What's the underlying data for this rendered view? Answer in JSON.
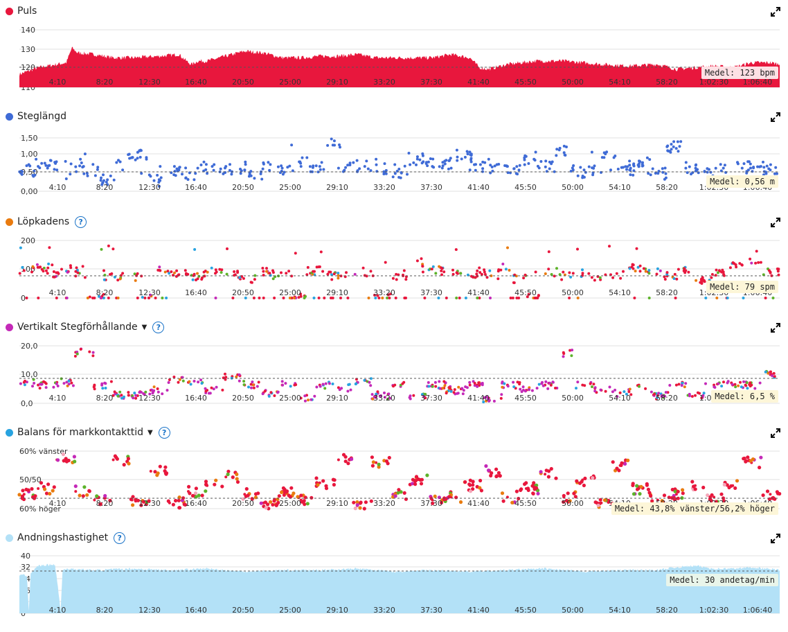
{
  "x_ticks": [
    "4:10",
    "8:20",
    "12:30",
    "16:40",
    "20:50",
    "25:00",
    "29:10",
    "33:20",
    "37:30",
    "41:40",
    "45:50",
    "50:00",
    "54:10",
    "58:20",
    "1:02:30",
    "1:06:40"
  ],
  "colors": {
    "red": "#e8173d",
    "blue": "#3f6bd6",
    "orange": "#e97b0f",
    "magenta": "#c429b8",
    "cyan": "#28a3e0",
    "green": "#5db32a",
    "lightblue": "#b3e1f7",
    "pink": "#f4a7b9"
  },
  "panels": [
    {
      "id": "puls",
      "title": "Puls",
      "dot_color": "#e8173d",
      "has_help": false,
      "has_caret": false,
      "y_labels": [
        "140",
        "130",
        "120",
        "110"
      ],
      "avg_label": "Medel: 123 bpm"
    },
    {
      "id": "steglangd",
      "title": "Steglängd",
      "dot_color": "#3f6bd6",
      "has_help": false,
      "has_caret": false,
      "y_labels": [
        "1,50",
        "1,00",
        "0,50",
        "0,00"
      ],
      "avg_label": "Medel: 0,56 m"
    },
    {
      "id": "lopkadens",
      "title": "Löpkadens",
      "dot_color": "#e97b0f",
      "has_help": true,
      "has_caret": false,
      "y_labels": [
        "200",
        "100",
        "0"
      ],
      "avg_label": "Medel: 79 spm"
    },
    {
      "id": "vertikalt",
      "title": "Vertikalt Stegförhållande",
      "dot_color": "#c429b8",
      "has_help": true,
      "has_caret": true,
      "y_labels": [
        "20,0",
        "10,0",
        "0,0"
      ],
      "avg_label": "Medel: 6,5 %"
    },
    {
      "id": "balans",
      "title": "Balans för markkontakttid",
      "dot_color": "#28a3e0",
      "has_help": true,
      "has_caret": true,
      "y_labels": [
        "60% vänster",
        "50/50",
        "60% höger"
      ],
      "avg_label": "Medel: 43,8% vänster/56,2% höger"
    },
    {
      "id": "andning",
      "title": "Andningshastighet",
      "dot_color": "#b3e1f7",
      "has_help": true,
      "has_caret": false,
      "y_labels": [
        "40",
        "32",
        "24",
        "16",
        "8",
        "0"
      ],
      "avg_label": "Medel: 30 andetag/min"
    }
  ],
  "chart_data": [
    {
      "type": "area",
      "title": "Puls",
      "x_unit": "time",
      "ylim": [
        110,
        145
      ],
      "mean": 123,
      "color": "#e8173d",
      "x": [
        0,
        200,
        400,
        500,
        560,
        620,
        800,
        1000,
        1200,
        1500,
        1700,
        1760,
        1800,
        1840,
        1900,
        2000,
        2200,
        2400,
        2600,
        2800,
        3000,
        3200,
        3400,
        3600,
        3800,
        4000,
        4200,
        4400,
        4600,
        4800,
        4900,
        5000,
        5200,
        5500,
        5800,
        6000,
        6200,
        6500,
        6800,
        7000,
        7200,
        7400,
        7600,
        7800,
        8000,
        8100
      ],
      "values": [
        118,
        122,
        124,
        125,
        134,
        131,
        130,
        128,
        128,
        129,
        130,
        127,
        125,
        124,
        126,
        126,
        129,
        132,
        131,
        128,
        128,
        129,
        129,
        130,
        128,
        128,
        128,
        128,
        130,
        128,
        122,
        121,
        124,
        126,
        126,
        125,
        124,
        123,
        124,
        121,
        122,
        123,
        122,
        125,
        125,
        124
      ]
    },
    {
      "type": "scatter",
      "title": "Steglängd",
      "ylim": [
        0,
        1.5
      ],
      "mean": 0.56,
      "color": "#3f6bd6",
      "points": [
        [
          30,
          0.55
        ],
        [
          100,
          0.75
        ],
        [
          200,
          0.7
        ],
        [
          300,
          0.65
        ],
        [
          400,
          0.6
        ],
        [
          500,
          0.35
        ],
        [
          650,
          0.9
        ],
        [
          700,
          1.05
        ],
        [
          900,
          0.3
        ],
        [
          1100,
          0.6
        ],
        [
          1300,
          0.5
        ],
        [
          1500,
          0.7
        ],
        [
          1700,
          0.6
        ],
        [
          1900,
          0.65
        ],
        [
          2000,
          0.5
        ],
        [
          2200,
          0.7
        ],
        [
          2400,
          0.6
        ],
        [
          2600,
          0.8
        ],
        [
          2800,
          0.65
        ],
        [
          2900,
          1.3
        ],
        [
          3000,
          0.7
        ],
        [
          3200,
          0.7
        ],
        [
          3400,
          0.65
        ],
        [
          3600,
          0.55
        ],
        [
          3800,
          0.9
        ],
        [
          4000,
          0.75
        ],
        [
          4200,
          0.8
        ],
        [
          4300,
          1.0
        ],
        [
          4400,
          0.7
        ],
        [
          4600,
          0.65
        ],
        [
          4800,
          0.6
        ],
        [
          5000,
          0.9
        ],
        [
          5200,
          0.7
        ],
        [
          5500,
          1.1
        ],
        [
          5700,
          0.55
        ],
        [
          5900,
          0.6
        ],
        [
          6100,
          1.1
        ],
        [
          6300,
          0.6
        ],
        [
          6500,
          0.85
        ],
        [
          6700,
          0.5
        ],
        [
          6900,
          1.25
        ],
        [
          7100,
          0.65
        ],
        [
          7300,
          0.55
        ],
        [
          7500,
          0.65
        ],
        [
          7700,
          0.65
        ],
        [
          7900,
          0.7
        ],
        [
          8000,
          0.6
        ]
      ]
    },
    {
      "type": "scatter",
      "title": "Löpkadens",
      "ylim": [
        0,
        210
      ],
      "mean": 79,
      "series_colors": [
        "#e8173d",
        "#28a3e0",
        "#5db32a",
        "#e97b0f",
        "#c429b8"
      ],
      "points": [
        [
          50,
          100
        ],
        [
          150,
          110
        ],
        [
          300,
          90
        ],
        [
          450,
          105
        ],
        [
          500,
          0
        ],
        [
          600,
          80
        ],
        [
          700,
          75
        ],
        [
          800,
          0
        ],
        [
          900,
          100
        ],
        [
          1100,
          90
        ],
        [
          1300,
          80
        ],
        [
          1500,
          100
        ],
        [
          1700,
          85
        ],
        [
          1900,
          70
        ],
        [
          2100,
          95
        ],
        [
          2300,
          85
        ],
        [
          2500,
          0
        ],
        [
          2700,
          100
        ],
        [
          2900,
          80
        ],
        [
          3100,
          90
        ],
        [
          3300,
          95
        ],
        [
          3500,
          0
        ],
        [
          3700,
          80
        ],
        [
          3900,
          130
        ],
        [
          4100,
          100
        ],
        [
          4300,
          95
        ],
        [
          4500,
          85
        ],
        [
          4700,
          90
        ],
        [
          4900,
          110
        ],
        [
          5100,
          70
        ],
        [
          5300,
          0
        ],
        [
          5500,
          95
        ],
        [
          5700,
          80
        ],
        [
          5900,
          90
        ],
        [
          6100,
          75
        ],
        [
          6300,
          85
        ],
        [
          6500,
          110
        ],
        [
          6700,
          95
        ],
        [
          6900,
          80
        ],
        [
          7100,
          100
        ],
        [
          7300,
          60
        ],
        [
          7500,
          95
        ],
        [
          7700,
          120
        ],
        [
          7900,
          130
        ],
        [
          8000,
          95
        ]
      ]
    },
    {
      "type": "scatter",
      "title": "Vertikalt Stegförhållande",
      "ylim": [
        0,
        22
      ],
      "mean": 6.5,
      "series_colors": [
        "#e8173d",
        "#28a3e0",
        "#5db32a",
        "#e97b0f",
        "#c429b8"
      ],
      "points": [
        [
          50,
          8
        ],
        [
          200,
          7
        ],
        [
          400,
          8
        ],
        [
          600,
          19.5
        ],
        [
          800,
          7
        ],
        [
          1000,
          3
        ],
        [
          1200,
          3
        ],
        [
          1400,
          5
        ],
        [
          1600,
          9
        ],
        [
          1800,
          8
        ],
        [
          2000,
          5
        ],
        [
          2200,
          10
        ],
        [
          2400,
          7
        ],
        [
          2600,
          4
        ],
        [
          2800,
          7
        ],
        [
          3000,
          2
        ],
        [
          3200,
          7
        ],
        [
          3400,
          6
        ],
        [
          3600,
          8
        ],
        [
          3800,
          3
        ],
        [
          4000,
          7
        ],
        [
          4200,
          3
        ],
        [
          4400,
          7
        ],
        [
          4600,
          5
        ],
        [
          4800,
          7
        ],
        [
          5000,
          2
        ],
        [
          5200,
          7
        ],
        [
          5400,
          5
        ],
        [
          5600,
          7
        ],
        [
          5800,
          19
        ],
        [
          6000,
          7
        ],
        [
          6200,
          5
        ],
        [
          6400,
          4
        ],
        [
          6600,
          7
        ],
        [
          6800,
          3
        ],
        [
          7000,
          7
        ],
        [
          7200,
          3
        ],
        [
          7400,
          7
        ],
        [
          7600,
          7
        ],
        [
          7800,
          7
        ],
        [
          8000,
          11
        ]
      ]
    },
    {
      "type": "scatter",
      "title": "Balans för markkontakttid",
      "ylim": [
        "60% höger",
        "60% vänster"
      ],
      "mean": "43,8% vänster/56,2% höger",
      "series_colors": [
        "#e8173d",
        "#e97b0f",
        "#5db32a",
        "#c429b8",
        "#f4a7b9"
      ],
      "points": [
        [
          50,
          45
        ],
        [
          200,
          47
        ],
        [
          400,
          57
        ],
        [
          600,
          46
        ],
        [
          800,
          43
        ],
        [
          1000,
          57
        ],
        [
          1200,
          43
        ],
        [
          1400,
          53
        ],
        [
          1600,
          42
        ],
        [
          1800,
          46
        ],
        [
          2000,
          48
        ],
        [
          2200,
          51
        ],
        [
          2400,
          45
        ],
        [
          2600,
          42
        ],
        [
          2800,
          46
        ],
        [
          3000,
          43
        ],
        [
          3200,
          49
        ],
        [
          3400,
          57
        ],
        [
          3600,
          41
        ],
        [
          3800,
          56
        ],
        [
          4000,
          45
        ],
        [
          4200,
          50
        ],
        [
          4400,
          43
        ],
        [
          4600,
          44
        ],
        [
          4800,
          48
        ],
        [
          5000,
          53
        ],
        [
          5200,
          44
        ],
        [
          5400,
          47
        ],
        [
          5600,
          52
        ],
        [
          5800,
          44
        ],
        [
          6000,
          50
        ],
        [
          6200,
          42
        ],
        [
          6400,
          55
        ],
        [
          6600,
          47
        ],
        [
          6800,
          43
        ],
        [
          7000,
          45
        ],
        [
          7200,
          48
        ],
        [
          7400,
          44
        ],
        [
          7600,
          48
        ],
        [
          7800,
          56
        ],
        [
          8000,
          45
        ]
      ]
    },
    {
      "type": "area",
      "title": "Andningshastighet",
      "ylim": [
        0,
        40
      ],
      "mean": 30,
      "color": "#b3e1f7",
      "x": [
        0,
        80,
        100,
        120,
        200,
        380,
        440,
        460,
        500,
        800,
        1200,
        1600,
        2000,
        2400,
        2800,
        3200,
        3600,
        4000,
        4400,
        4800,
        5200,
        5600,
        6000,
        6400,
        6800,
        7000,
        7200,
        7400,
        7600,
        7800,
        8100
      ],
      "values": [
        27,
        26,
        2,
        28,
        33,
        34,
        2,
        30,
        31,
        30,
        31,
        30,
        31,
        29,
        30,
        30,
        31,
        29,
        30,
        29,
        30,
        31,
        29,
        30,
        30,
        32,
        33,
        31,
        31,
        32,
        30
      ]
    }
  ]
}
